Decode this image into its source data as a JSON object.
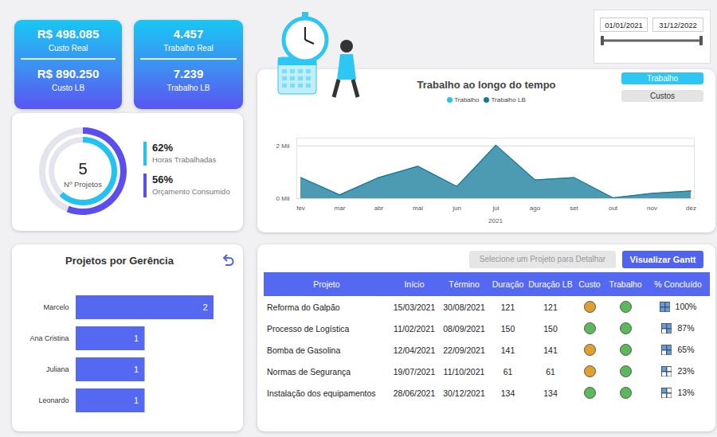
{
  "kpi_cards": [
    {
      "items": [
        {
          "value": "R$ 498.085",
          "label": "Custo Real"
        },
        {
          "value": "R$ 890.250",
          "label": "Custo LB"
        }
      ]
    },
    {
      "items": [
        {
          "value": "4.457",
          "label": "Trabalho Real"
        },
        {
          "value": "7.239",
          "label": "Trabalho LB"
        }
      ]
    }
  ],
  "summary": {
    "count": {
      "value": 5,
      "label": "Nº Projetos"
    },
    "metrics": [
      {
        "value": 62,
        "value_label": "62%",
        "label": "Horas Trabalhadas",
        "color": "#22c3f0"
      },
      {
        "value": 56,
        "value_label": "56%",
        "label": "Orçamento Consumido",
        "color": "#5b4ef0"
      }
    ]
  },
  "date_filter": {
    "start": "01/01/2021",
    "end": "31/12/2022"
  },
  "view_buttons": [
    {
      "label": "Trabalho",
      "active": true
    },
    {
      "label": "Custos",
      "active": false
    }
  ],
  "chart_data": [
    {
      "type": "area",
      "title": "Trabalho ao longo do tempo",
      "categories": [
        "fev",
        "mar",
        "abr",
        "mai",
        "jun",
        "jul",
        "ago",
        "set",
        "out",
        "nov",
        "dez"
      ],
      "x_label": "2021",
      "series": [
        {
          "name": "Trabalho",
          "color": "#22c3f0",
          "values": [
            null,
            null,
            null,
            null,
            null,
            null,
            null,
            null,
            null,
            null,
            null
          ]
        },
        {
          "name": "Trabalho LB",
          "color": "#127a99",
          "values": [
            800,
            140,
            800,
            1230,
            460,
            2030,
            710,
            800,
            30,
            200,
            290
          ]
        }
      ],
      "ylim": [
        0,
        2300
      ],
      "yticks": [
        {
          "value": 0,
          "label": "0 Mil"
        },
        {
          "value": 2000,
          "label": "2 Mil"
        }
      ],
      "grid": true,
      "legend": "top"
    },
    {
      "type": "bar",
      "title": "Projetos por Gerência",
      "orientation": "horizontal",
      "categories": [
        "Marcelo",
        "Ana Cristina",
        "Juliana",
        "Leonardo"
      ],
      "values": [
        2,
        1,
        1,
        1
      ],
      "color": "#5468f2",
      "xlim": [
        0,
        2
      ],
      "data_labels": true,
      "tick_labels": "y"
    }
  ],
  "table_panel": {
    "buttons": [
      {
        "label": "Selecione um Projeto para Detalhar",
        "active": false
      },
      {
        "label": "Visualizar Gantt",
        "active": true
      }
    ],
    "columns": [
      "Projeto",
      "Início",
      "Término",
      "Duração",
      "Duração LB",
      "Custo",
      "Trabalho",
      "% Concluído"
    ],
    "rows": [
      [
        "Reforma do Galpão",
        "15/03/2021",
        "30/08/2021",
        121,
        121,
        "#e0a030",
        "#5cb85c",
        "100%"
      ],
      [
        "Processo de Logística",
        "11/02/2021",
        "08/09/2021",
        150,
        150,
        "#5cb85c",
        "#5cb85c",
        "87%"
      ],
      [
        "Bomba de Gasolina",
        "12/04/2021",
        "22/09/2021",
        141,
        141,
        "#e0a030",
        "#5cb85c",
        "65%"
      ],
      [
        "Normas de Segurança",
        "19/07/2021",
        "11/10/2021",
        61,
        61,
        "#e0a030",
        "#5cb85c",
        "23%"
      ],
      [
        "Instalação dos equipamentos",
        "28/06/2021",
        "30/12/2021",
        134,
        134,
        "#5cb85c",
        "#5cb85c",
        "13%"
      ]
    ]
  }
}
